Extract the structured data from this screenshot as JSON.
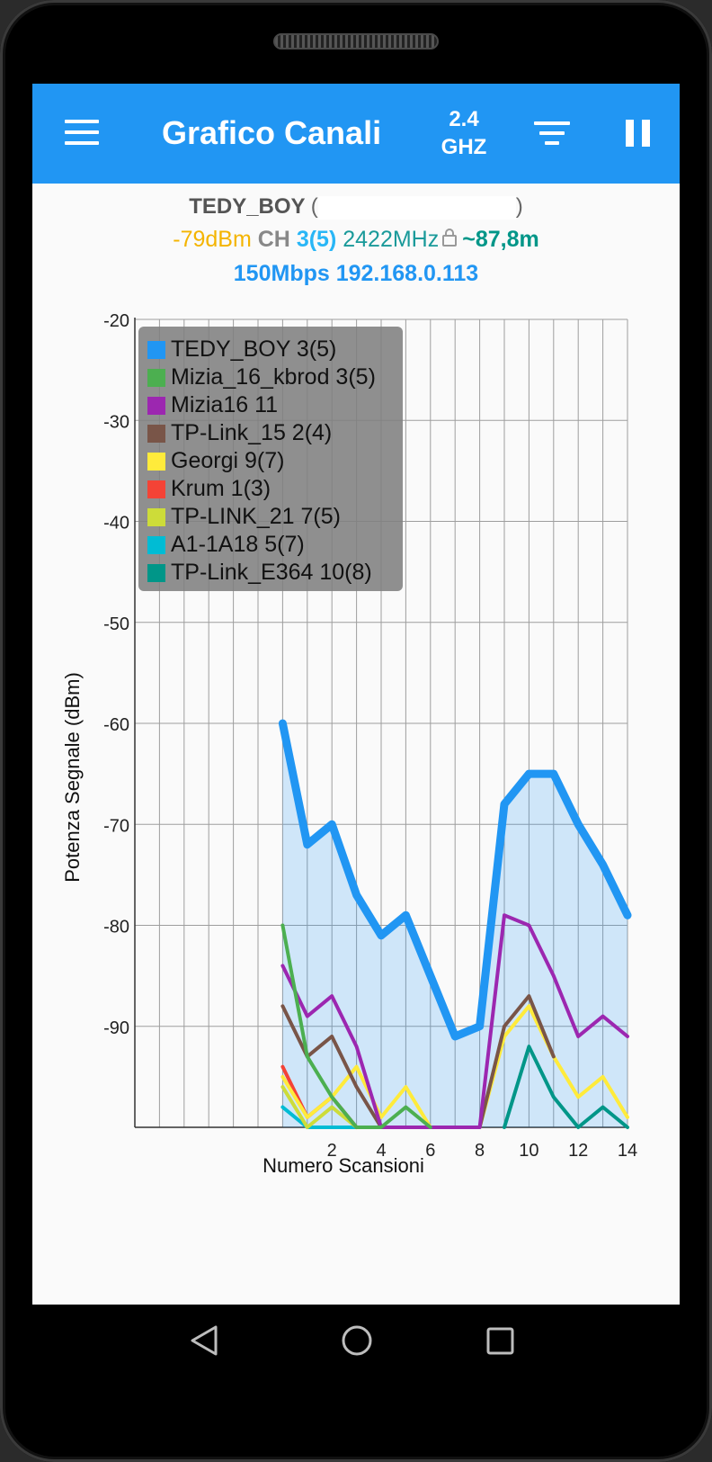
{
  "app": {
    "title": "Grafico Canali",
    "band_value": "2.4",
    "band_unit": "GHZ",
    "accent": "#2196f3"
  },
  "icons": {
    "menu": "hamburger-menu-icon",
    "filter": "filter-icon",
    "pause": "pause-icon",
    "lock": "lock-icon",
    "nav_back": "back-triangle-icon",
    "nav_home": "home-circle-icon",
    "nav_recents": "recents-square-icon"
  },
  "connection": {
    "ssid": "TEDY_BOY",
    "paren_open": "(",
    "paren_close": ")",
    "signal": "-79dBm",
    "ch_label": "CH",
    "channel": "3(5)",
    "frequency": "2422MHz",
    "distance": "~87,8m",
    "rate_ip": "150Mbps 192.168.0.113",
    "colors": {
      "signal": "#f4b400",
      "ch_label": "#888888",
      "channel": "#29b6f6",
      "frequency": "#1a9a9a",
      "distance": "#009688"
    }
  },
  "chart_data": {
    "type": "line",
    "ylabel": "Potenza Segnale (dBm)",
    "xlabel": "Numero Scansioni",
    "ylim": [
      -100,
      -20
    ],
    "xlim": [
      -6,
      14
    ],
    "y_ticks": [
      "-20",
      "-30",
      "-40",
      "-50",
      "-60",
      "-70",
      "-80",
      "-90"
    ],
    "x_ticks": [
      "2",
      "4",
      "6",
      "8",
      "10",
      "12",
      "14"
    ],
    "grid": true,
    "legend_position": "top-left",
    "series": [
      {
        "name": "TEDY_BOY 3(5)",
        "color": "#2196f3",
        "width": 9,
        "fill": true,
        "x": [
          0,
          1,
          2,
          3,
          4,
          5,
          6,
          7,
          8,
          9,
          10,
          11,
          12,
          13,
          14
        ],
        "y": [
          -60,
          -72,
          -70,
          -77,
          -81,
          -79,
          -85,
          -91,
          -90,
          -68,
          -65,
          -65,
          -70,
          -74,
          -79
        ]
      },
      {
        "name": "Mizia_16_kbrod 3(5)",
        "color": "#4caf50",
        "width": 4,
        "x": [
          0,
          1,
          2,
          3,
          4,
          5,
          6
        ],
        "y": [
          -80,
          -93,
          -97,
          -100,
          -100,
          -98,
          -100
        ]
      },
      {
        "name": "Mizia16 11",
        "color": "#9c27b0",
        "width": 4,
        "x": [
          0,
          1,
          2,
          3,
          4,
          5,
          6,
          7,
          8,
          9,
          10,
          11,
          12,
          13,
          14
        ],
        "y": [
          -84,
          -89,
          -87,
          -92,
          -100,
          -100,
          -100,
          -100,
          -100,
          -79,
          -80,
          -85,
          -91,
          -89,
          -91
        ]
      },
      {
        "name": "TP-Link_15 2(4)",
        "color": "#795548",
        "width": 4,
        "x": [
          0,
          1,
          2,
          3,
          4,
          5,
          6,
          7,
          8,
          9,
          10,
          11
        ],
        "y": [
          -88,
          -93,
          -91,
          -96,
          -100,
          -100,
          -100,
          -100,
          -100,
          -90,
          -87,
          -93
        ]
      },
      {
        "name": "Georgi 9(7)",
        "color": "#ffeb3b",
        "width": 4,
        "x": [
          0,
          1,
          2,
          3,
          4,
          5,
          6,
          7,
          8,
          9,
          10,
          11,
          12,
          13,
          14
        ],
        "y": [
          -95,
          -99,
          -97,
          -94,
          -99,
          -96,
          -100,
          -100,
          -100,
          -91,
          -88,
          -93,
          -97,
          -95,
          -99
        ]
      },
      {
        "name": "Krum 1(3)",
        "color": "#f44336",
        "width": 4,
        "x": [
          0,
          1,
          2,
          3
        ],
        "y": [
          -94,
          -99,
          -97,
          -100
        ]
      },
      {
        "name": "TP-LINK_21 7(5)",
        "color": "#cddc39",
        "width": 4,
        "x": [
          0,
          1,
          2,
          3
        ],
        "y": [
          -96,
          -100,
          -98,
          -100
        ]
      },
      {
        "name": "A1-1A18 5(7)",
        "color": "#00bcd4",
        "width": 4,
        "x": [
          0,
          1,
          2,
          3,
          4
        ],
        "y": [
          -98,
          -100,
          -100,
          -100,
          -100
        ]
      },
      {
        "name": "TP-Link_E364 10(8)",
        "color": "#009688",
        "width": 4,
        "x": [
          9,
          10,
          11,
          12,
          13,
          14
        ],
        "y": [
          -100,
          -92,
          -97,
          -100,
          -98,
          -100
        ]
      }
    ]
  }
}
